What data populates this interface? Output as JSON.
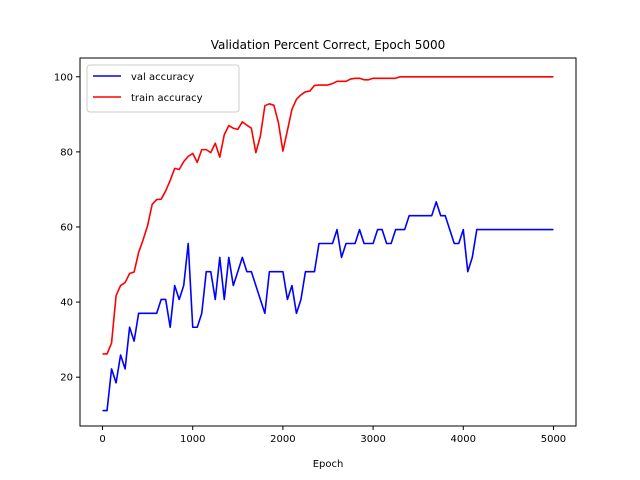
{
  "chart_data": {
    "type": "line",
    "title": "Validation Percent Correct, Epoch 5000",
    "xlabel": "Epoch",
    "ylabel": "",
    "xlim": [
      -250,
      5250
    ],
    "ylim": [
      7,
      105
    ],
    "xticks": [
      0,
      1000,
      2000,
      3000,
      4000,
      5000
    ],
    "yticks": [
      20,
      40,
      60,
      80,
      100
    ],
    "grid": false,
    "legend_position": "top-left",
    "x": [
      0,
      50,
      100,
      150,
      200,
      250,
      300,
      350,
      400,
      450,
      500,
      550,
      600,
      650,
      700,
      750,
      800,
      850,
      900,
      950,
      1000,
      1050,
      1100,
      1150,
      1200,
      1250,
      1300,
      1350,
      1400,
      1450,
      1500,
      1550,
      1600,
      1650,
      1700,
      1750,
      1800,
      1850,
      1900,
      1950,
      2000,
      2050,
      2100,
      2150,
      2200,
      2250,
      2300,
      2350,
      2400,
      2450,
      2500,
      2550,
      2600,
      2650,
      2700,
      2750,
      2800,
      2850,
      2900,
      2950,
      3000,
      3050,
      3100,
      3150,
      3200,
      3250,
      3300,
      3350,
      3400,
      3450,
      3500,
      3550,
      3600,
      3650,
      3700,
      3750,
      3800,
      3850,
      3900,
      3950,
      4000,
      4050,
      4100,
      4150,
      4200,
      4250,
      4300,
      4350,
      4400,
      4450,
      4500,
      4550,
      4600,
      4650,
      4700,
      4750,
      4800,
      4850,
      4900,
      4950,
      5000
    ],
    "series": [
      {
        "name": "val accuracy",
        "color": "#0000ff",
        "values": [
          11.1,
          11.1,
          22.2,
          18.5,
          25.9,
          22.2,
          33.3,
          29.6,
          37.0,
          37.0,
          37.0,
          37.0,
          37.0,
          40.7,
          40.7,
          33.3,
          44.4,
          40.7,
          44.4,
          55.6,
          33.3,
          33.3,
          37.0,
          48.1,
          48.1,
          40.7,
          51.9,
          40.7,
          51.9,
          44.4,
          48.1,
          51.9,
          48.1,
          48.1,
          44.4,
          40.7,
          37.0,
          48.1,
          48.1,
          48.1,
          48.1,
          40.7,
          44.4,
          37.0,
          40.7,
          48.1,
          48.1,
          48.1,
          55.6,
          55.6,
          55.6,
          55.6,
          59.3,
          51.9,
          55.6,
          55.6,
          55.6,
          59.3,
          55.6,
          55.6,
          55.6,
          59.3,
          59.3,
          55.6,
          55.6,
          59.3,
          59.3,
          59.3,
          63.0,
          63.0,
          63.0,
          63.0,
          63.0,
          63.0,
          66.7,
          63.0,
          63.0,
          59.3,
          55.6,
          55.6,
          59.3,
          48.1,
          51.9,
          59.3,
          59.3,
          59.3,
          59.3,
          59.3,
          59.3,
          59.3,
          59.3,
          59.3,
          59.3,
          59.3,
          59.3,
          59.3,
          59.3,
          59.3,
          59.3,
          59.3,
          59.3
        ]
      },
      {
        "name": "train accuracy",
        "color": "#ff0000",
        "values": [
          26.2,
          26.2,
          29.1,
          41.7,
          44.4,
          45.2,
          47.6,
          48.0,
          53.2,
          56.6,
          60.4,
          66.0,
          67.3,
          67.4,
          69.6,
          72.4,
          75.6,
          75.3,
          77.4,
          78.8,
          79.6,
          77.2,
          80.6,
          80.6,
          79.8,
          82.3,
          78.6,
          84.6,
          87.0,
          86.3,
          86.0,
          88.0,
          87.1,
          86.3,
          79.8,
          84.2,
          92.3,
          92.8,
          92.4,
          87.8,
          80.2,
          85.7,
          91.3,
          94.0,
          95.2,
          96.0,
          96.2,
          97.7,
          97.8,
          97.8,
          97.8,
          98.2,
          98.8,
          98.8,
          98.8,
          99.4,
          99.6,
          99.6,
          99.2,
          99.2,
          99.6,
          99.6,
          99.6,
          99.6,
          99.6,
          99.6,
          100.0,
          100.0,
          100.0,
          100.0,
          100.0,
          100.0,
          100.0,
          100.0,
          100.0,
          100.0,
          100.0,
          100.0,
          100.0,
          100.0,
          100.0,
          100.0,
          100.0,
          100.0,
          100.0,
          100.0,
          100.0,
          100.0,
          100.0,
          100.0,
          100.0,
          100.0,
          100.0,
          100.0,
          100.0,
          100.0,
          100.0,
          100.0,
          100.0,
          100.0,
          100.0
        ]
      }
    ]
  }
}
